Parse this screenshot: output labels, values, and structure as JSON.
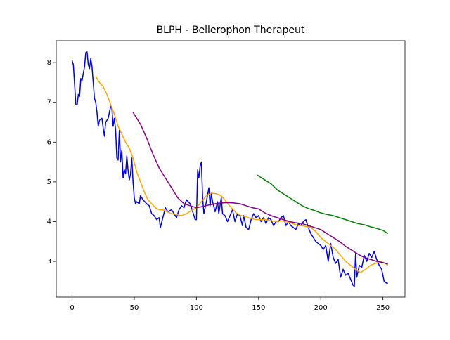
{
  "chart_data": {
    "type": "line",
    "title": "BLPH - Bellerophon Therapeut",
    "xlim": [
      -12.75,
      267.75
    ],
    "ylim": [
      2.1,
      8.55
    ],
    "xticks": [
      0,
      50,
      100,
      150,
      200,
      250
    ],
    "yticks": [
      3,
      4,
      5,
      6,
      7,
      8
    ],
    "series": [
      {
        "color": "#0000dd",
        "x": [
          0,
          1,
          3,
          4,
          5,
          6,
          7,
          8,
          10,
          11,
          12,
          13,
          14,
          15,
          16,
          17,
          18,
          19,
          20,
          21,
          22,
          24,
          25,
          26,
          27,
          29,
          31,
          32,
          33,
          34,
          35,
          36,
          37,
          38,
          39,
          40,
          41,
          42,
          43,
          44,
          45,
          46,
          47,
          48,
          49,
          50,
          51,
          52,
          54,
          55,
          57,
          60,
          62,
          64,
          66,
          68,
          70,
          71,
          73,
          75,
          77,
          80,
          82,
          84,
          86,
          88,
          90,
          92,
          95,
          97,
          99,
          100,
          101,
          102,
          103,
          104,
          105,
          106,
          108,
          110,
          111,
          112,
          113,
          115,
          117,
          118,
          120,
          121,
          123,
          125,
          127,
          129,
          131,
          133,
          135,
          137,
          138,
          140,
          142,
          144,
          146,
          148,
          150,
          152,
          154,
          156,
          158,
          160,
          162,
          164,
          166,
          168,
          170,
          172,
          174,
          176,
          178,
          180,
          182,
          184,
          186,
          188,
          190,
          192,
          194,
          196,
          198,
          200,
          202,
          204,
          206,
          208,
          210,
          212,
          214,
          216,
          218,
          220,
          222,
          224,
          226,
          227,
          228,
          229,
          231,
          233,
          235,
          237,
          239,
          241,
          243,
          245,
          247,
          249,
          251,
          253,
          254
        ],
        "values": [
          8.05,
          7.95,
          6.95,
          6.93,
          7.2,
          7.15,
          7.6,
          7.55,
          7.9,
          8.25,
          8.27,
          7.95,
          7.85,
          8.1,
          7.9,
          7.5,
          7.1,
          7.0,
          6.75,
          6.4,
          6.55,
          6.6,
          6.35,
          6.15,
          6.5,
          6.6,
          6.9,
          6.85,
          6.4,
          6.6,
          6.3,
          5.6,
          5.55,
          6.3,
          5.5,
          5.8,
          5.1,
          5.3,
          5.2,
          5.65,
          5.3,
          5.05,
          5.2,
          5.6,
          5.0,
          4.6,
          4.45,
          4.5,
          4.45,
          4.65,
          4.55,
          4.45,
          4.4,
          4.2,
          4.15,
          4.05,
          4.1,
          3.85,
          4.1,
          4.35,
          4.25,
          4.3,
          4.2,
          4.1,
          4.3,
          4.4,
          4.35,
          4.55,
          4.45,
          4.25,
          4.05,
          4.05,
          5.3,
          5.1,
          5.4,
          5.5,
          4.6,
          4.2,
          4.5,
          4.85,
          4.4,
          4.7,
          4.5,
          4.25,
          4.5,
          4.2,
          4.6,
          4.2,
          4.15,
          4.0,
          4.15,
          4.3,
          4.0,
          4.2,
          4.15,
          3.9,
          4.15,
          3.85,
          3.8,
          4.05,
          4.2,
          4.1,
          4.15,
          4.0,
          4.1,
          3.95,
          4.1,
          4.05,
          3.9,
          4.0,
          4.0,
          4.1,
          4.15,
          3.9,
          4.0,
          3.9,
          3.85,
          3.8,
          3.95,
          3.9,
          4.0,
          4.05,
          3.85,
          3.7,
          3.6,
          3.5,
          3.45,
          3.4,
          3.3,
          3.4,
          3.0,
          3.45,
          3.1,
          2.95,
          3.05,
          2.6,
          2.8,
          2.65,
          2.7,
          2.55,
          2.4,
          2.37,
          3.2,
          2.6,
          2.9,
          2.85,
          3.15,
          3.0,
          3.2,
          3.1,
          3.25,
          3.05,
          2.9,
          2.8,
          2.5,
          2.45,
          2.45
        ]
      },
      {
        "color": "#ffa500",
        "x": [
          19,
          22,
          25,
          28,
          31,
          34,
          37,
          40,
          43,
          46,
          49,
          52,
          55,
          58,
          61,
          64,
          67,
          70,
          73,
          76,
          80,
          84,
          88,
          92,
          96,
          100,
          104,
          108,
          112,
          116,
          120,
          124,
          128,
          132,
          136,
          140,
          144,
          148,
          152,
          156,
          160,
          164,
          168,
          172,
          176,
          180,
          184,
          188,
          192,
          196,
          200,
          204,
          208,
          212,
          216,
          220,
          224,
          228,
          232,
          236,
          240,
          244,
          248,
          252,
          254
        ],
        "values": [
          7.65,
          7.5,
          7.4,
          7.2,
          6.95,
          6.7,
          6.4,
          6.2,
          6.0,
          5.85,
          5.6,
          5.25,
          5.0,
          4.75,
          4.55,
          4.45,
          4.35,
          4.3,
          4.3,
          4.25,
          4.2,
          4.18,
          4.15,
          4.2,
          4.28,
          4.35,
          4.5,
          4.65,
          4.72,
          4.7,
          4.65,
          4.5,
          4.35,
          4.22,
          4.15,
          4.12,
          4.08,
          4.05,
          4.05,
          4.05,
          4.02,
          4.0,
          4.02,
          4.0,
          3.97,
          3.92,
          3.9,
          3.88,
          3.85,
          3.75,
          3.6,
          3.5,
          3.4,
          3.3,
          3.15,
          3.0,
          2.9,
          2.8,
          2.72,
          2.8,
          2.9,
          2.95,
          3.0,
          2.95,
          2.9
        ]
      },
      {
        "color": "#800080",
        "x": [
          49,
          55,
          60,
          65,
          70,
          75,
          80,
          85,
          90,
          95,
          100,
          105,
          110,
          115,
          120,
          125,
          130,
          135,
          140,
          145,
          150,
          155,
          160,
          165,
          170,
          175,
          180,
          185,
          190,
          195,
          200,
          205,
          210,
          215,
          220,
          225,
          230,
          235,
          240,
          245,
          250,
          254
        ],
        "values": [
          6.75,
          6.45,
          6.1,
          5.7,
          5.35,
          5.1,
          4.85,
          4.6,
          4.45,
          4.4,
          4.35,
          4.38,
          4.42,
          4.45,
          4.47,
          4.48,
          4.47,
          4.45,
          4.4,
          4.35,
          4.32,
          4.22,
          4.15,
          4.1,
          4.05,
          4.0,
          3.97,
          3.95,
          3.9,
          3.85,
          3.8,
          3.7,
          3.6,
          3.5,
          3.38,
          3.28,
          3.18,
          3.1,
          3.05,
          3.0,
          2.97,
          2.93
        ]
      },
      {
        "color": "#008000",
        "x": [
          149,
          155,
          160,
          165,
          170,
          175,
          180,
          185,
          190,
          195,
          200,
          205,
          210,
          215,
          220,
          225,
          230,
          235,
          240,
          245,
          250,
          254
        ],
        "values": [
          5.17,
          5.05,
          4.95,
          4.8,
          4.7,
          4.6,
          4.5,
          4.4,
          4.33,
          4.28,
          4.22,
          4.18,
          4.15,
          4.1,
          4.05,
          4.0,
          3.95,
          3.92,
          3.87,
          3.83,
          3.78,
          3.7
        ]
      }
    ]
  }
}
